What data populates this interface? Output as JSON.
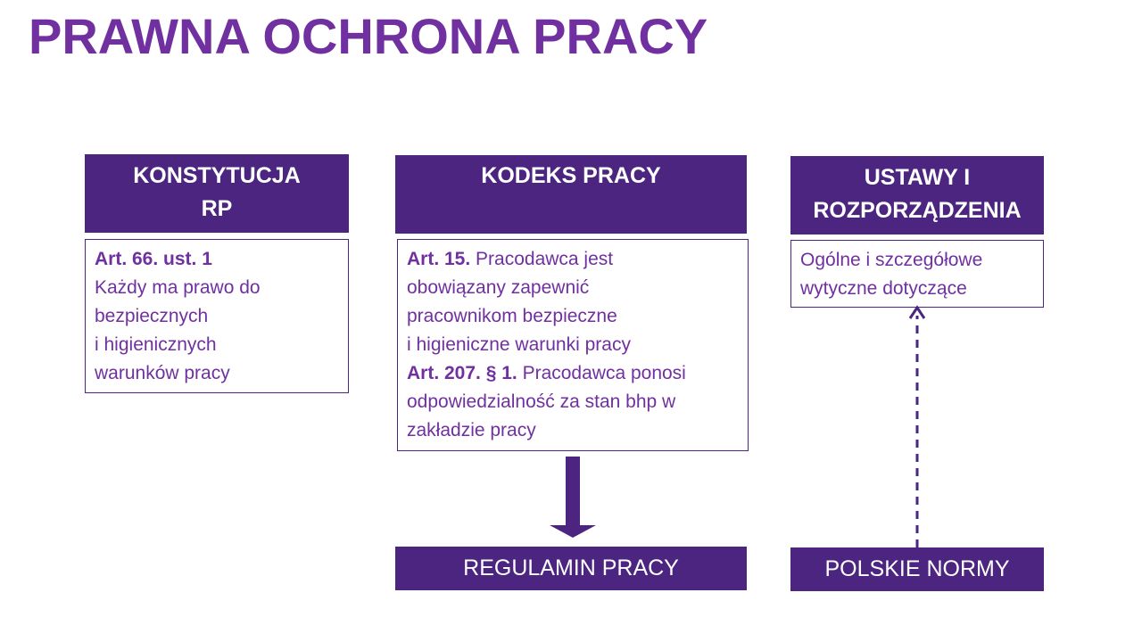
{
  "title": "PRAWNA OCHRONA PRACY",
  "colors": {
    "title": "#7030a0",
    "box_fill": "#4b2580",
    "text": "#7030a0",
    "arrow": "#4b2580"
  },
  "columns": [
    {
      "header_lines": [
        "KONSTYTUCJA",
        "RP"
      ],
      "content": [
        {
          "bold": "Art. 66. ust. 1",
          "text": ""
        },
        {
          "bold": "",
          "text": "Każdy ma prawo do"
        },
        {
          "bold": "",
          "text": "bezpiecznych"
        },
        {
          "bold": "",
          "text": "i higienicznych"
        },
        {
          "bold": "",
          "text": "warunków pracy"
        }
      ]
    },
    {
      "header_lines": [
        "KODEKS PRACY"
      ],
      "content": [
        {
          "bold": "Art. 15.",
          "text": " Pracodawca jest"
        },
        {
          "bold": "",
          "text": "obowiązany zapewnić"
        },
        {
          "bold": "",
          "text": "pracownikom bezpieczne"
        },
        {
          "bold": "",
          "text": "i higieniczne warunki pracy"
        },
        {
          "bold": "Art. 207. § 1.",
          "text": " Pracodawca ponosi"
        },
        {
          "bold": "",
          "text": "odpowiedzialność za stan bhp w"
        },
        {
          "bold": "",
          "text": "zakładzie pracy"
        }
      ]
    },
    {
      "header_lines": [
        "USTAWY I",
        "ROZPORZĄDZENIA"
      ],
      "content": [
        {
          "bold": "",
          "text": "Ogólne i szczegółowe"
        },
        {
          "bold": "",
          "text": "wytyczne dotyczące"
        }
      ]
    }
  ],
  "bottom": {
    "regulamin": "REGULAMIN PRACY",
    "normy": "POLSKIE NORMY"
  }
}
